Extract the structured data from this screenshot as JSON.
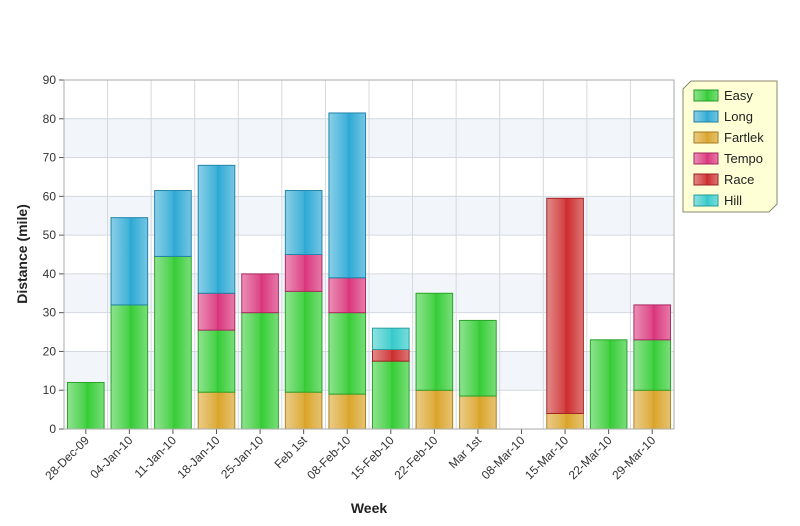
{
  "chart_data": {
    "type": "bar",
    "stacked": true,
    "xlabel": "Week",
    "ylabel": "Distance (mile)",
    "ylim": [
      0,
      90
    ],
    "yticks": [
      0,
      10,
      20,
      30,
      40,
      50,
      60,
      70,
      80,
      90
    ],
    "grid": true,
    "legend_position": "top-right",
    "categories": [
      "28-Dec-09",
      "04-Jan-10",
      "11-Jan-10",
      "18-Jan-10",
      "25-Jan-10",
      "Feb 1st",
      "08-Feb-10",
      "15-Feb-10",
      "22-Feb-10",
      "Mar 1st",
      "08-Mar-10",
      "15-Mar-10",
      "22-Mar-10",
      "29-Mar-10"
    ],
    "stack_order": [
      "Fartlek",
      "Easy",
      "Tempo",
      "Race",
      "Long",
      "Hill"
    ],
    "series": [
      {
        "name": "Easy",
        "color": "#33cc33",
        "values": [
          12,
          32,
          44.5,
          16,
          30,
          26,
          21,
          17.5,
          25,
          19.5,
          0,
          0,
          23,
          13
        ]
      },
      {
        "name": "Long",
        "color": "#2aa8d4",
        "values": [
          0,
          22.5,
          17,
          33,
          0,
          16.5,
          42.5,
          0,
          0,
          0,
          0,
          0,
          0,
          0
        ]
      },
      {
        "name": "Fartlek",
        "color": "#d9a326",
        "values": [
          0,
          0,
          0,
          9.5,
          0,
          9.5,
          9,
          0,
          10,
          8.5,
          0,
          4,
          0,
          10
        ]
      },
      {
        "name": "Tempo",
        "color": "#d9337a",
        "values": [
          0,
          0,
          0,
          9.5,
          10,
          9.5,
          9,
          0,
          0,
          0,
          0,
          0,
          0,
          9
        ]
      },
      {
        "name": "Race",
        "color": "#cc2a2a",
        "values": [
          0,
          0,
          0,
          0,
          0,
          0,
          0,
          3,
          0,
          0,
          0,
          55.5,
          0,
          0
        ]
      },
      {
        "name": "Hill",
        "color": "#33c9c9",
        "values": [
          0,
          0,
          0,
          0,
          0,
          0,
          0,
          5.5,
          0,
          0,
          0,
          0,
          0,
          0
        ]
      }
    ]
  }
}
